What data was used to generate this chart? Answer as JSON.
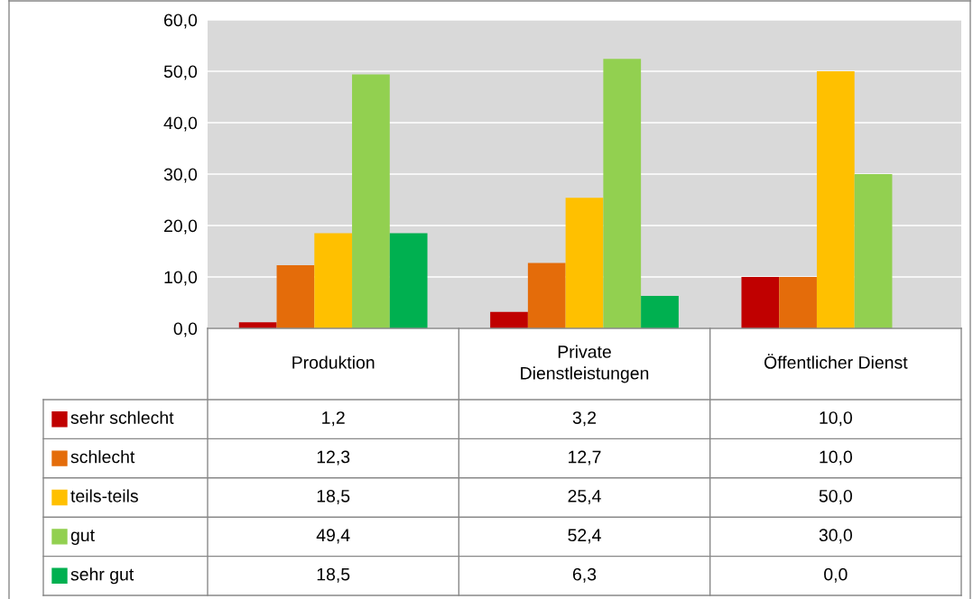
{
  "chart_data": {
    "type": "bar",
    "categories": [
      "Produktion",
      "Private Dienstleistungen",
      "Öffentlicher Dienst"
    ],
    "series": [
      {
        "name": "sehr schlecht",
        "color": "#c00000",
        "values": [
          1.2,
          3.2,
          10.0
        ],
        "value_labels": [
          "1,2",
          "3,2",
          "10,0"
        ]
      },
      {
        "name": "schlecht",
        "color": "#e46c0a",
        "values": [
          12.3,
          12.7,
          10.0
        ],
        "value_labels": [
          "12,3",
          "12,7",
          "10,0"
        ]
      },
      {
        "name": "teils-teils",
        "color": "#ffc000",
        "values": [
          18.5,
          25.4,
          50.0
        ],
        "value_labels": [
          "18,5",
          "25,4",
          "50,0"
        ]
      },
      {
        "name": "gut",
        "color": "#92d050",
        "values": [
          49.4,
          52.4,
          30.0
        ],
        "value_labels": [
          "49,4",
          "52,4",
          "30,0"
        ]
      },
      {
        "name": "sehr gut",
        "color": "#00b050",
        "values": [
          18.5,
          6.3,
          0.0
        ],
        "value_labels": [
          "18,5",
          "6,3",
          "0,0"
        ]
      }
    ],
    "ylim": [
      0,
      60
    ],
    "yticks": [
      {
        "value": 0,
        "label": "0,0"
      },
      {
        "value": 10,
        "label": "10,0"
      },
      {
        "value": 20,
        "label": "20,0"
      },
      {
        "value": 30,
        "label": "30,0"
      },
      {
        "value": 40,
        "label": "40,0"
      },
      {
        "value": 50,
        "label": "50,0"
      },
      {
        "value": 60,
        "label": "60,0"
      }
    ],
    "grid": "y",
    "legend": "bottom"
  }
}
